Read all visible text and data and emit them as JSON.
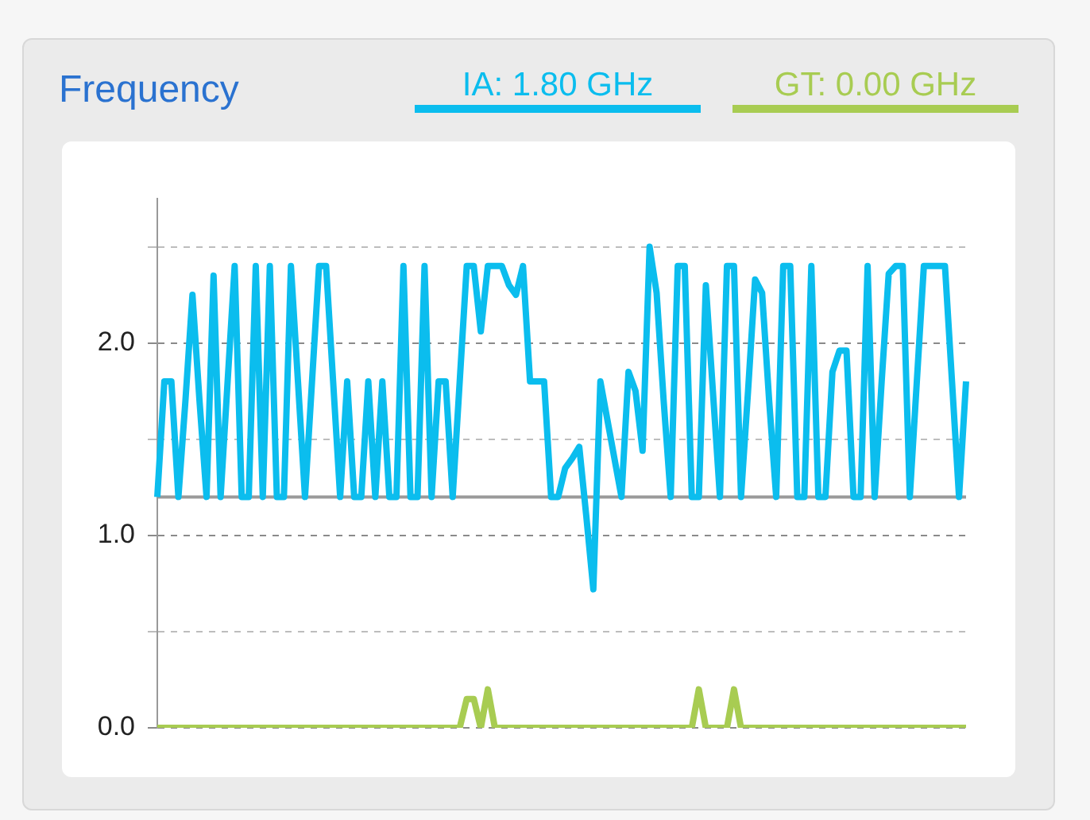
{
  "chart_data": {
    "type": "line",
    "title": "Frequency",
    "categories": [
      null,
      null,
      null,
      null,
      null,
      null,
      null,
      null,
      null,
      null,
      null,
      null,
      null,
      null,
      null,
      null,
      null,
      null,
      null,
      null,
      null,
      null,
      null,
      null,
      null,
      null,
      null,
      null,
      null,
      null,
      null,
      null,
      null,
      null,
      null,
      null,
      null,
      null,
      null,
      null,
      null,
      null,
      null,
      null,
      null,
      null,
      null,
      null,
      null,
      null,
      null,
      null,
      null,
      null,
      null,
      null,
      null,
      null,
      null,
      null,
      null,
      null,
      null,
      null,
      null,
      null,
      null,
      null,
      null,
      null,
      null,
      null,
      null,
      null,
      null,
      null,
      null,
      null,
      null,
      null,
      null,
      null,
      null,
      null,
      null,
      null,
      null,
      null,
      null,
      null,
      null,
      null,
      null,
      null,
      null,
      null,
      null,
      null,
      null,
      null,
      null,
      null,
      null,
      null,
      null,
      null,
      null,
      null,
      null,
      null,
      null,
      null,
      null,
      null,
      null,
      null
    ],
    "series": [
      {
        "name": "IA: 1.80 GHz",
        "color": "#0bbdee",
        "values": [
          1.2,
          1.8,
          1.8,
          1.2,
          1.7,
          2.25,
          1.7,
          1.2,
          2.35,
          1.2,
          1.8,
          2.4,
          1.2,
          1.2,
          2.4,
          1.2,
          2.4,
          1.2,
          1.2,
          2.4,
          1.8,
          1.2,
          1.8,
          2.4,
          2.4,
          1.8,
          1.2,
          1.8,
          1.2,
          1.2,
          1.8,
          1.2,
          1.8,
          1.2,
          1.2,
          2.4,
          1.2,
          1.2,
          2.4,
          1.2,
          1.8,
          1.8,
          1.2,
          1.8,
          2.4,
          2.4,
          2.06,
          2.4,
          2.4,
          2.4,
          2.3,
          2.25,
          2.4,
          1.8,
          1.8,
          1.8,
          1.2,
          1.2,
          1.35,
          1.4,
          1.46,
          1.1,
          0.72,
          1.8,
          1.6,
          1.4,
          1.2,
          1.85,
          1.75,
          1.44,
          2.5,
          2.26,
          1.7,
          1.2,
          2.4,
          2.4,
          1.2,
          1.2,
          2.3,
          1.75,
          1.2,
          2.4,
          2.4,
          1.2,
          1.75,
          2.33,
          2.26,
          1.7,
          1.2,
          2.4,
          2.4,
          1.2,
          1.2,
          2.4,
          1.2,
          1.2,
          1.85,
          1.96,
          1.96,
          1.2,
          1.2,
          2.4,
          1.2,
          1.8,
          2.36,
          2.4,
          2.4,
          1.2,
          1.8,
          2.4,
          2.4,
          2.4,
          2.4,
          1.8,
          1.2,
          1.8
        ]
      },
      {
        "name": "GT: 0.00 GHz",
        "color": "#a8cc52",
        "values": [
          0,
          0,
          0,
          0,
          0,
          0,
          0,
          0,
          0,
          0,
          0,
          0,
          0,
          0,
          0,
          0,
          0,
          0,
          0,
          0,
          0,
          0,
          0,
          0,
          0,
          0,
          0,
          0,
          0,
          0,
          0,
          0,
          0,
          0,
          0,
          0,
          0,
          0,
          0,
          0,
          0,
          0,
          0,
          0,
          0.15,
          0.15,
          0,
          0.2,
          0,
          0,
          0,
          0,
          0,
          0,
          0,
          0,
          0,
          0,
          0,
          0,
          0,
          0,
          0,
          0,
          0,
          0,
          0,
          0,
          0,
          0,
          0,
          0,
          0,
          0,
          0,
          0,
          0,
          0.2,
          0,
          0,
          0,
          0,
          0.2,
          0,
          0,
          0,
          0,
          0,
          0,
          0,
          0,
          0,
          0,
          0,
          0,
          0,
          0,
          0,
          0,
          0,
          0,
          0,
          0,
          0,
          0,
          0,
          0,
          0,
          0,
          0,
          0,
          0,
          0,
          0,
          0,
          0
        ]
      }
    ],
    "ylim": [
      0,
      2.75
    ],
    "yticks": [
      {
        "value": 0,
        "label": "0.0"
      },
      {
        "value": 0.5,
        "label": null
      },
      {
        "value": 1,
        "label": "1.0"
      },
      {
        "value": 1.5,
        "label": null
      },
      {
        "value": 2,
        "label": "2.0"
      },
      {
        "value": 2.5,
        "label": null
      }
    ],
    "ref_lines": [
      {
        "axis": "y",
        "value": 1.2,
        "color": "#9a9a9a"
      }
    ],
    "grid": "y",
    "legend": "top right",
    "marker": "none",
    "line_style": "solid",
    "tick_labels": "y"
  }
}
